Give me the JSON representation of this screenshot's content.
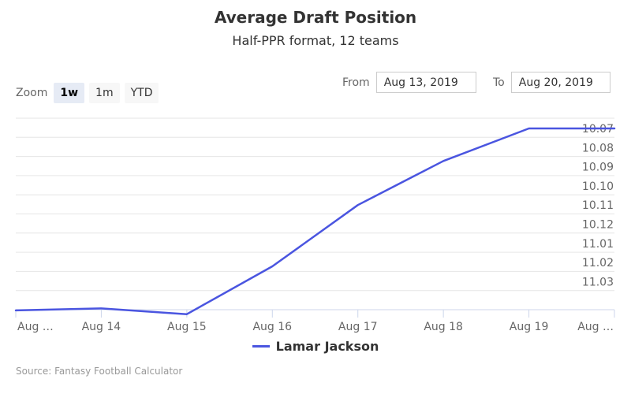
{
  "title": "Average Draft Position",
  "subtitle": "Half-PPR format, 12 teams",
  "zoom": {
    "label": "Zoom",
    "buttons": [
      "1w",
      "1m",
      "YTD"
    ],
    "active": "1w"
  },
  "range": {
    "from_label": "From",
    "from_value": "Aug 13, 2019",
    "to_label": "To",
    "to_value": "Aug 20, 2019"
  },
  "credits": "Source: Fantasy Football Calculator",
  "colors": {
    "series": "#4a55e0",
    "grid": "#e6e6e6",
    "axis": "#ccd6eb"
  },
  "chart_data": {
    "type": "line",
    "title": "Average Draft Position",
    "subtitle": "Half-PPR format, 12 teams",
    "x_tick_labels": [
      "Aug …",
      "Aug 14",
      "Aug 15",
      "Aug 16",
      "Aug 17",
      "Aug 18",
      "Aug 19",
      "Aug …"
    ],
    "y_tick_labels": [
      "10.07",
      "10.08",
      "10.09",
      "10.10",
      "10.11",
      "10.12",
      "11.01",
      "11.02",
      "11.03"
    ],
    "y_reversed": true,
    "y_axis_side": "right",
    "grid": true,
    "legend_position": "bottom",
    "series": [
      {
        "name": "Lamar Jackson",
        "x": [
          "Aug 13",
          "Aug 14",
          "Aug 15",
          "Aug 16",
          "Aug 17",
          "Aug 18",
          "Aug 19",
          "Aug 20"
        ],
        "values": [
          11.045,
          11.044,
          11.047,
          11.022,
          10.11,
          10.087,
          10.07,
          10.07
        ]
      }
    ]
  }
}
